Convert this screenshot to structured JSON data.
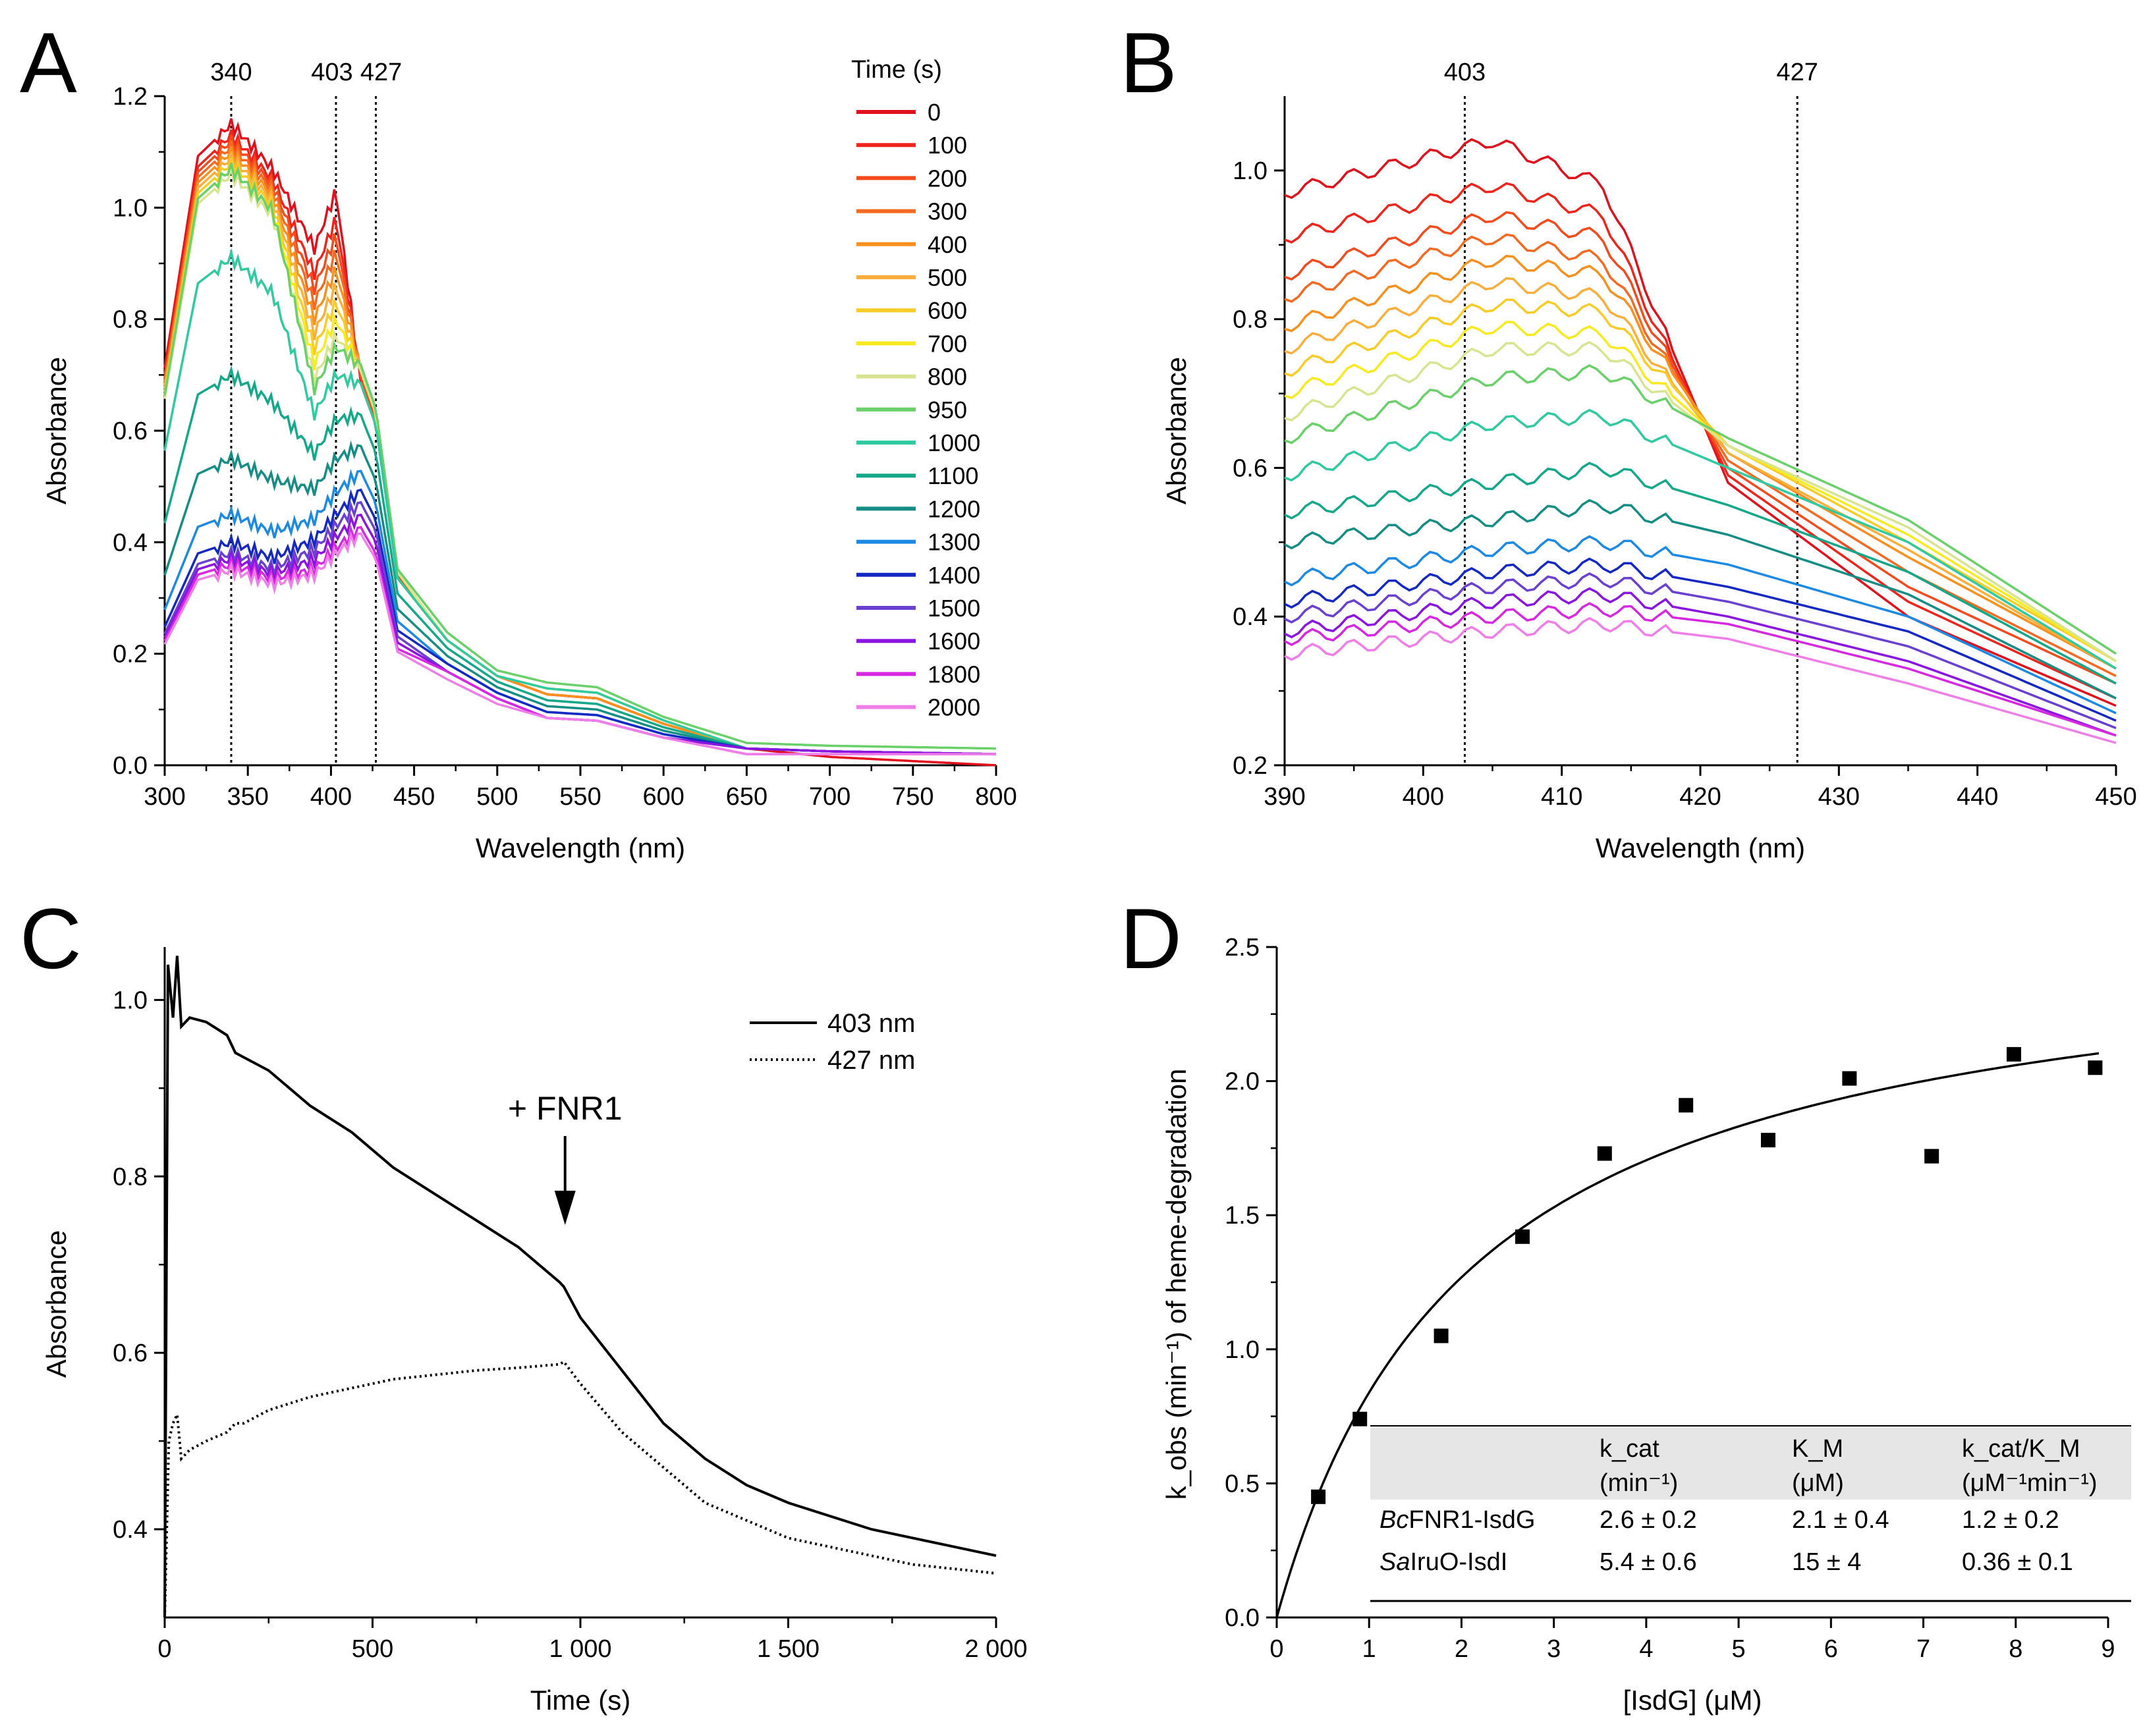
{
  "figure": {
    "panel_letters": [
      "A",
      "B",
      "C",
      "D"
    ]
  },
  "chart_data": [
    {
      "panel": "A",
      "type": "line",
      "xlabel": "Wavelength (nm)",
      "ylabel": "Absorbance",
      "xlim": [
        300,
        800
      ],
      "ylim": [
        0,
        1.2
      ],
      "xticks": [
        300,
        350,
        400,
        450,
        500,
        550,
        600,
        650,
        700,
        750,
        800
      ],
      "yticks": [
        0.0,
        0.2,
        0.4,
        0.6,
        0.8,
        1.0,
        1.2
      ],
      "ytick_labels": [
        "0.0",
        "0.2",
        "0.4",
        "0.6",
        "0.8",
        "1.0",
        "1.2"
      ],
      "vlines": [
        340,
        403,
        427
      ],
      "vline_labels": [
        "340",
        "403",
        "427"
      ],
      "legend_title": "Time (s)",
      "series": [
        {
          "name": "0",
          "color": "#e0101c",
          "a340": 1.15,
          "a403": 1.03,
          "a427": 0.61,
          "a500": 0.16,
          "a560": 0.12,
          "a650": 0.03,
          "a800": 0.0
        },
        {
          "name": "100",
          "color": "#f0241a",
          "a340": 1.13,
          "a403": 0.98,
          "a427": 0.62,
          "a500": 0.16,
          "a560": 0.12,
          "a650": 0.03,
          "a800": 0.02
        },
        {
          "name": "200",
          "color": "#f44a1c",
          "a340": 1.12,
          "a403": 0.95,
          "a427": 0.62,
          "a500": 0.16,
          "a560": 0.12,
          "a650": 0.03,
          "a800": 0.02
        },
        {
          "name": "300",
          "color": "#f56a22",
          "a340": 1.11,
          "a403": 0.92,
          "a427": 0.63,
          "a500": 0.16,
          "a560": 0.12,
          "a650": 0.03,
          "a800": 0.02
        },
        {
          "name": "400",
          "color": "#f8901e",
          "a340": 1.1,
          "a403": 0.89,
          "a427": 0.63,
          "a500": 0.16,
          "a560": 0.12,
          "a650": 0.03,
          "a800": 0.02
        },
        {
          "name": "500",
          "color": "#fbae3c",
          "a340": 1.09,
          "a403": 0.86,
          "a427": 0.63,
          "a500": 0.16,
          "a560": 0.13,
          "a650": 0.03,
          "a800": 0.02
        },
        {
          "name": "600",
          "color": "#f8cc28",
          "a340": 1.08,
          "a403": 0.83,
          "a427": 0.63,
          "a500": 0.16,
          "a560": 0.13,
          "a650": 0.03,
          "a800": 0.02
        },
        {
          "name": "700",
          "color": "#f8ea20",
          "a340": 1.07,
          "a403": 0.8,
          "a427": 0.63,
          "a500": 0.16,
          "a560": 0.13,
          "a650": 0.03,
          "a800": 0.02
        },
        {
          "name": "800",
          "color": "#d8e490",
          "a340": 1.06,
          "a403": 0.77,
          "a427": 0.63,
          "a500": 0.16,
          "a560": 0.13,
          "a650": 0.03,
          "a800": 0.02
        },
        {
          "name": "950",
          "color": "#6ad06a",
          "a340": 1.07,
          "a403": 0.75,
          "a427": 0.64,
          "a500": 0.17,
          "a560": 0.14,
          "a650": 0.04,
          "a800": 0.03
        },
        {
          "name": "1000",
          "color": "#2fcaa0",
          "a340": 0.91,
          "a403": 0.7,
          "a427": 0.61,
          "a500": 0.16,
          "a560": 0.13,
          "a650": 0.03,
          "a800": 0.02
        },
        {
          "name": "1100",
          "color": "#14a88a",
          "a340": 0.7,
          "a403": 0.62,
          "a427": 0.56,
          "a500": 0.15,
          "a560": 0.11,
          "a650": 0.03,
          "a800": 0.02
        },
        {
          "name": "1200",
          "color": "#148e84",
          "a340": 0.55,
          "a403": 0.55,
          "a427": 0.51,
          "a500": 0.14,
          "a560": 0.1,
          "a650": 0.03,
          "a800": 0.02
        },
        {
          "name": "1300",
          "color": "#1c8ae4",
          "a340": 0.45,
          "a403": 0.49,
          "a427": 0.47,
          "a500": 0.13,
          "a560": 0.09,
          "a650": 0.03,
          "a800": 0.02
        },
        {
          "name": "1400",
          "color": "#1428c4",
          "a340": 0.4,
          "a403": 0.45,
          "a427": 0.44,
          "a500": 0.13,
          "a560": 0.09,
          "a650": 0.03,
          "a800": 0.02
        },
        {
          "name": "1500",
          "color": "#6a40d0",
          "a340": 0.38,
          "a403": 0.43,
          "a427": 0.42,
          "a500": 0.12,
          "a560": 0.08,
          "a650": 0.03,
          "a800": 0.02
        },
        {
          "name": "1600",
          "color": "#8a14e0",
          "a340": 0.37,
          "a403": 0.41,
          "a427": 0.4,
          "a500": 0.12,
          "a560": 0.08,
          "a650": 0.03,
          "a800": 0.02
        },
        {
          "name": "1800",
          "color": "#d628e0",
          "a340": 0.36,
          "a403": 0.39,
          "a427": 0.38,
          "a500": 0.12,
          "a560": 0.08,
          "a650": 0.02,
          "a800": 0.02
        },
        {
          "name": "2000",
          "color": "#f07ee8",
          "a340": 0.35,
          "a403": 0.38,
          "a427": 0.37,
          "a500": 0.11,
          "a560": 0.08,
          "a650": 0.02,
          "a800": 0.02
        }
      ]
    },
    {
      "panel": "B",
      "type": "line",
      "xlabel": "Wavelength (nm)",
      "ylabel": "Absorbance",
      "xlim": [
        390,
        450
      ],
      "ylim": [
        0.2,
        1.1
      ],
      "xticks": [
        390,
        400,
        410,
        420,
        430,
        440,
        450
      ],
      "yticks": [
        0.2,
        0.4,
        0.6,
        0.8,
        1.0
      ],
      "ytick_labels": [
        "0.2",
        "0.4",
        "0.6",
        "0.8",
        "1.0"
      ],
      "vlines": [
        403,
        427
      ],
      "vline_labels": [
        "403",
        "427"
      ],
      "series": [
        {
          "name": "0",
          "color": "#e0101c",
          "a390": 0.97,
          "a405": 1.04,
          "a413": 0.98,
          "a422": 0.58,
          "a435": 0.4,
          "a450": 0.28
        },
        {
          "name": "100",
          "color": "#f0241a",
          "a390": 0.91,
          "a405": 0.98,
          "a413": 0.94,
          "a422": 0.59,
          "a435": 0.42,
          "a450": 0.29
        },
        {
          "name": "200",
          "color": "#f44a1c",
          "a390": 0.86,
          "a405": 0.94,
          "a413": 0.91,
          "a422": 0.6,
          "a435": 0.44,
          "a450": 0.31
        },
        {
          "name": "300",
          "color": "#f56a22",
          "a390": 0.83,
          "a405": 0.91,
          "a413": 0.88,
          "a422": 0.61,
          "a435": 0.46,
          "a450": 0.32
        },
        {
          "name": "400",
          "color": "#f8901e",
          "a390": 0.79,
          "a405": 0.88,
          "a413": 0.86,
          "a422": 0.62,
          "a435": 0.48,
          "a450": 0.33
        },
        {
          "name": "500",
          "color": "#fbae3c",
          "a390": 0.76,
          "a405": 0.85,
          "a413": 0.83,
          "a422": 0.62,
          "a435": 0.49,
          "a450": 0.33
        },
        {
          "name": "600",
          "color": "#f8cc28",
          "a390": 0.73,
          "a405": 0.82,
          "a413": 0.81,
          "a422": 0.63,
          "a435": 0.5,
          "a450": 0.34
        },
        {
          "name": "700",
          "color": "#f8ea20",
          "a390": 0.7,
          "a405": 0.79,
          "a413": 0.78,
          "a422": 0.63,
          "a435": 0.51,
          "a450": 0.34
        },
        {
          "name": "800",
          "color": "#d8e490",
          "a390": 0.67,
          "a405": 0.76,
          "a413": 0.76,
          "a422": 0.63,
          "a435": 0.52,
          "a450": 0.34
        },
        {
          "name": "950",
          "color": "#6ad06a",
          "a390": 0.64,
          "a405": 0.72,
          "a413": 0.73,
          "a422": 0.64,
          "a435": 0.53,
          "a450": 0.35
        },
        {
          "name": "1000",
          "color": "#2fcaa0",
          "a390": 0.59,
          "a405": 0.66,
          "a413": 0.67,
          "a422": 0.6,
          "a435": 0.5,
          "a450": 0.33
        },
        {
          "name": "1100",
          "color": "#14a88a",
          "a390": 0.54,
          "a405": 0.58,
          "a413": 0.6,
          "a422": 0.55,
          "a435": 0.46,
          "a450": 0.31
        },
        {
          "name": "1200",
          "color": "#148e84",
          "a390": 0.5,
          "a405": 0.53,
          "a413": 0.55,
          "a422": 0.51,
          "a435": 0.43,
          "a450": 0.29
        },
        {
          "name": "1300",
          "color": "#1c8ae4",
          "a390": 0.45,
          "a405": 0.49,
          "a413": 0.5,
          "a422": 0.47,
          "a435": 0.4,
          "a450": 0.27
        },
        {
          "name": "1400",
          "color": "#1428c4",
          "a390": 0.42,
          "a405": 0.46,
          "a413": 0.47,
          "a422": 0.44,
          "a435": 0.38,
          "a450": 0.26
        },
        {
          "name": "1500",
          "color": "#6a40d0",
          "a390": 0.4,
          "a405": 0.44,
          "a413": 0.45,
          "a422": 0.42,
          "a435": 0.36,
          "a450": 0.25
        },
        {
          "name": "1600",
          "color": "#8a14e0",
          "a390": 0.38,
          "a405": 0.42,
          "a413": 0.43,
          "a422": 0.4,
          "a435": 0.34,
          "a450": 0.24
        },
        {
          "name": "1800",
          "color": "#d628e0",
          "a390": 0.37,
          "a405": 0.4,
          "a413": 0.41,
          "a422": 0.39,
          "a435": 0.33,
          "a450": 0.24
        },
        {
          "name": "2000",
          "color": "#f07ee8",
          "a390": 0.35,
          "a405": 0.38,
          "a413": 0.39,
          "a422": 0.37,
          "a435": 0.31,
          "a450": 0.23
        }
      ]
    },
    {
      "panel": "C",
      "type": "line",
      "xlabel": "Time (s)",
      "ylabel": "Absorbance",
      "xlim": [
        0,
        2000
      ],
      "ylim": [
        0.3,
        1.06
      ],
      "xticks": [
        0,
        500,
        1000,
        1500,
        2000
      ],
      "xtick_labels": [
        "0",
        "500",
        "1 000",
        "1 500",
        "2 000"
      ],
      "yticks": [
        0.4,
        0.6,
        0.8,
        1.0
      ],
      "ytick_labels": [
        "0.4",
        "0.6",
        "0.8",
        "1.0"
      ],
      "annotation": "+ FNR1",
      "annotation_x": 960,
      "series": [
        {
          "name": "403 nm",
          "style": "solid",
          "x": [
            0,
            8,
            20,
            30,
            40,
            60,
            100,
            150,
            170,
            190,
            250,
            350,
            450,
            550,
            650,
            750,
            850,
            950,
            960,
            1000,
            1100,
            1200,
            1300,
            1400,
            1500,
            1600,
            1700,
            1800,
            1900,
            2000
          ],
          "y": [
            0.3,
            1.04,
            0.98,
            1.05,
            0.97,
            0.98,
            0.975,
            0.96,
            0.94,
            0.935,
            0.92,
            0.88,
            0.85,
            0.81,
            0.78,
            0.75,
            0.72,
            0.68,
            0.675,
            0.64,
            0.58,
            0.52,
            0.48,
            0.45,
            0.43,
            0.415,
            0.4,
            0.39,
            0.38,
            0.37
          ]
        },
        {
          "name": "427 nm",
          "style": "dotted",
          "x": [
            0,
            10,
            20,
            30,
            40,
            60,
            100,
            150,
            170,
            190,
            250,
            350,
            450,
            550,
            650,
            750,
            850,
            950,
            960,
            1000,
            1100,
            1200,
            1300,
            1400,
            1500,
            1600,
            1700,
            1800,
            1900,
            2000
          ],
          "y": [
            0.3,
            0.5,
            0.52,
            0.53,
            0.48,
            0.49,
            0.5,
            0.51,
            0.52,
            0.52,
            0.535,
            0.55,
            0.56,
            0.57,
            0.575,
            0.58,
            0.583,
            0.587,
            0.59,
            0.565,
            0.51,
            0.47,
            0.43,
            0.41,
            0.39,
            0.38,
            0.37,
            0.36,
            0.355,
            0.35
          ]
        }
      ]
    },
    {
      "panel": "D",
      "type": "scatter",
      "xlabel": "[IsdG] (μM)",
      "ylabel": "k_obs (min⁻¹) of heme-degradation",
      "xlim": [
        0,
        9
      ],
      "ylim": [
        0,
        2.5
      ],
      "xticks": [
        0,
        1,
        2,
        3,
        4,
        5,
        6,
        7,
        8,
        9
      ],
      "yticks": [
        0.0,
        0.5,
        1.0,
        1.5,
        2.0,
        2.5
      ],
      "ytick_labels": [
        "0.0",
        "0.5",
        "1.0",
        "1.5",
        "2.0",
        "2.5"
      ],
      "points": {
        "x": [
          0.45,
          0.9,
          1.78,
          2.66,
          3.55,
          4.43,
          5.32,
          6.2,
          7.09,
          7.98,
          8.86
        ],
        "y": [
          0.45,
          0.74,
          1.05,
          1.42,
          1.73,
          1.91,
          1.78,
          2.01,
          1.72,
          2.1,
          2.05
        ]
      },
      "fit": {
        "model": "Michaelis-Menten",
        "vmax": 2.6,
        "km": 2.1
      },
      "table": {
        "headers": [
          "k_cat (min⁻¹)",
          "K_M (μM)",
          "k_cat/K_M (μM⁻¹min⁻¹)"
        ],
        "rows": [
          {
            "name_italic": "Bc",
            "name": "FNR1-IsdG",
            "kcat": "2.6 ± 0.2",
            "km": "2.1 ± 0.4",
            "ratio": "1.2 ± 0.2"
          },
          {
            "name_italic": "Sa",
            "name": "IruO-IsdI",
            "kcat": "5.4 ± 0.6",
            "km": "15 ± 4",
            "ratio": "0.36 ± 0.1"
          }
        ]
      }
    }
  ]
}
